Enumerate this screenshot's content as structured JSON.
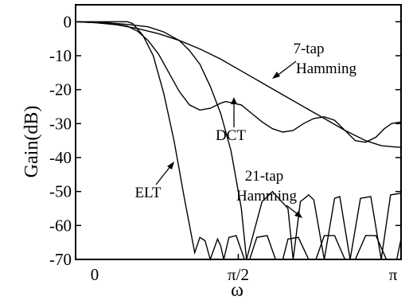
{
  "chart_data": {
    "type": "line",
    "title": "",
    "xlabel": "ω",
    "ylabel": "Gain(dB)",
    "xlim": [
      0,
      3.14159
    ],
    "ylim": [
      -70,
      5
    ],
    "grid": false,
    "x_ticks": [
      {
        "value": 0,
        "label": "0"
      },
      {
        "value": 1.5708,
        "label": "π/2"
      },
      {
        "value": 3.14159,
        "label": "π"
      }
    ],
    "y_ticks": [
      {
        "value": 0,
        "label": "0"
      },
      {
        "value": -10,
        "label": "-10"
      },
      {
        "value": -20,
        "label": "-20"
      },
      {
        "value": -30,
        "label": "-30"
      },
      {
        "value": -40,
        "label": "-40"
      },
      {
        "value": -50,
        "label": "-50"
      },
      {
        "value": -60,
        "label": "-60"
      },
      {
        "value": -70,
        "label": "-70"
      }
    ],
    "series": [
      {
        "name": "7-tap Hamming",
        "x": [
          0,
          0.2,
          0.4,
          0.6,
          0.8,
          1.0,
          1.2,
          1.4,
          1.6,
          1.8,
          2.0,
          2.2,
          2.4,
          2.6,
          2.8,
          2.95,
          3.05,
          3.14159
        ],
        "y": [
          0,
          -0.3,
          -0.9,
          -2.0,
          -3.5,
          -5.5,
          -8.0,
          -11.0,
          -14.5,
          -18.0,
          -21.5,
          -25.0,
          -28.5,
          -32.0,
          -35.0,
          -36.5,
          -36.8,
          -37.0
        ]
      },
      {
        "name": "DCT",
        "x": [
          0,
          0.2,
          0.4,
          0.5,
          0.6,
          0.7,
          0.8,
          0.9,
          1.0,
          1.1,
          1.2,
          1.3,
          1.4,
          1.45,
          1.6,
          1.7,
          1.8,
          1.9,
          2.0,
          2.1,
          2.2,
          2.3,
          2.4,
          2.5,
          2.6,
          2.7,
          2.8,
          2.9,
          2.98,
          3.05,
          3.14159
        ],
        "y": [
          0,
          -0.3,
          -0.8,
          -1.3,
          -2.8,
          -5.5,
          -9.5,
          -15.0,
          -20.5,
          -24.5,
          -26.0,
          -25.5,
          -24.0,
          -23.5,
          -24.5,
          -27.0,
          -29.5,
          -31.5,
          -32.5,
          -32.0,
          -30.0,
          -28.5,
          -28.0,
          -29.0,
          -32.0,
          -35.0,
          -35.5,
          -34.0,
          -31.5,
          -30.0,
          -29.5
        ]
      },
      {
        "name": "21-tap Hamming",
        "x": [
          0,
          0.3,
          0.5,
          0.7,
          0.85,
          1.0,
          1.1,
          1.2,
          1.3,
          1.4,
          1.5,
          1.6,
          1.65,
          1.8,
          1.9,
          2.05,
          2.1,
          2.17,
          2.25,
          2.3,
          2.4,
          2.5,
          2.55,
          2.65,
          2.75,
          2.85,
          2.95,
          3.04,
          3.14159
        ],
        "y": [
          0,
          -0.3,
          -0.8,
          -1.5,
          -3.0,
          -5.5,
          -8.5,
          -12.5,
          -19.0,
          -27.0,
          -38.0,
          -55.0,
          -70,
          -53.0,
          -50.0,
          -55.0,
          -70,
          -53.0,
          -51.0,
          -52.5,
          -70,
          -52.0,
          -51.5,
          -70,
          -52.0,
          -51.5,
          -70,
          -51.0,
          -50.5
        ]
      },
      {
        "name": "ELT",
        "x": [
          0,
          0.1,
          0.2,
          0.3,
          0.4,
          0.5,
          0.55,
          0.65,
          0.75,
          0.85,
          0.95,
          1.0,
          1.05,
          1.1,
          1.15,
          1.2,
          1.25,
          1.3,
          1.37,
          1.4,
          1.43,
          1.48,
          1.55,
          1.63,
          1.68,
          1.75,
          1.85,
          1.93,
          2.0,
          2.05,
          2.15,
          2.25,
          2.32,
          2.4,
          2.5,
          2.6,
          2.7,
          2.8,
          2.9,
          3.0,
          3.1,
          3.14159
        ],
        "y": [
          0,
          0,
          0,
          0,
          0,
          0,
          -0.5,
          -4.0,
          -10.0,
          -21.0,
          -35.0,
          -43.5,
          -52.0,
          -60.0,
          -68.0,
          -63.5,
          -64.5,
          -70,
          -64.0,
          -66.0,
          -70,
          -63.5,
          -63.0,
          -70,
          -70,
          -63.5,
          -63.0,
          -70,
          -70,
          -64.0,
          -63.5,
          -70,
          -70,
          -63.0,
          -63.0,
          -70,
          -70,
          -63.0,
          -63.0,
          -70,
          -70,
          -64.0
        ]
      }
    ],
    "annotations": [
      {
        "lines": [
          "7-tap",
          "Hamming"
        ],
        "target": "7-tap Hamming"
      },
      {
        "lines": [
          "DCT"
        ],
        "target": "DCT"
      },
      {
        "lines": [
          "21-tap",
          "Hamming"
        ],
        "target": "21-tap Hamming"
      },
      {
        "lines": [
          "ELT"
        ],
        "target": "ELT"
      }
    ]
  }
}
